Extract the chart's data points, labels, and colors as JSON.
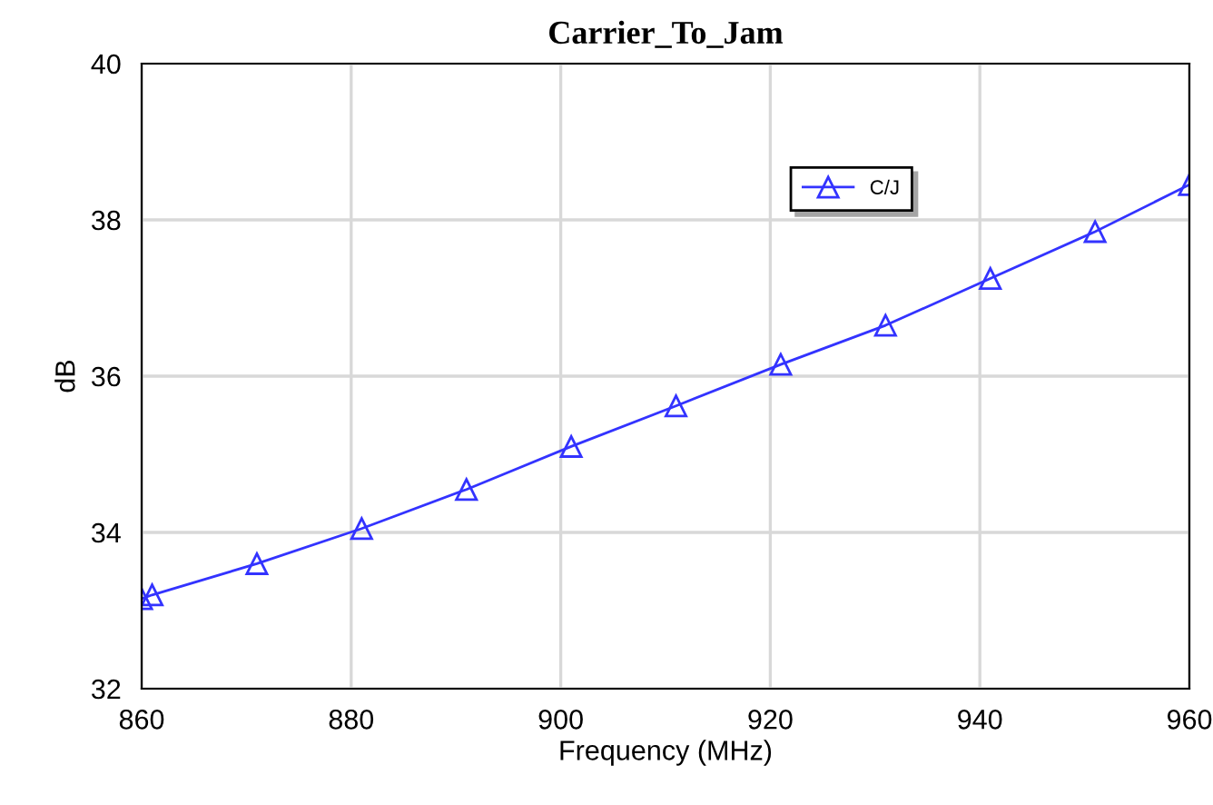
{
  "chart_data": {
    "type": "line",
    "title": "Carrier_To_Jam",
    "xlabel": "Frequency (MHz)",
    "ylabel": "dB",
    "x": [
      860,
      861,
      871,
      881,
      891,
      901,
      911,
      921,
      931,
      941,
      951,
      960
    ],
    "series": [
      {
        "name": "C/J",
        "color": "#3333ff",
        "values": [
          33.15,
          33.2,
          33.6,
          34.05,
          34.55,
          35.1,
          35.62,
          36.15,
          36.65,
          37.25,
          37.85,
          38.45
        ]
      }
    ],
    "xlim": [
      860,
      960
    ],
    "xticks": [
      860,
      880,
      900,
      920,
      940,
      960
    ],
    "ylim": [
      32,
      40
    ],
    "yticks": [
      32,
      34,
      36,
      38,
      40
    ],
    "grid": true,
    "legend": "top right",
    "marker": "triangle",
    "line_style": "solid"
  }
}
